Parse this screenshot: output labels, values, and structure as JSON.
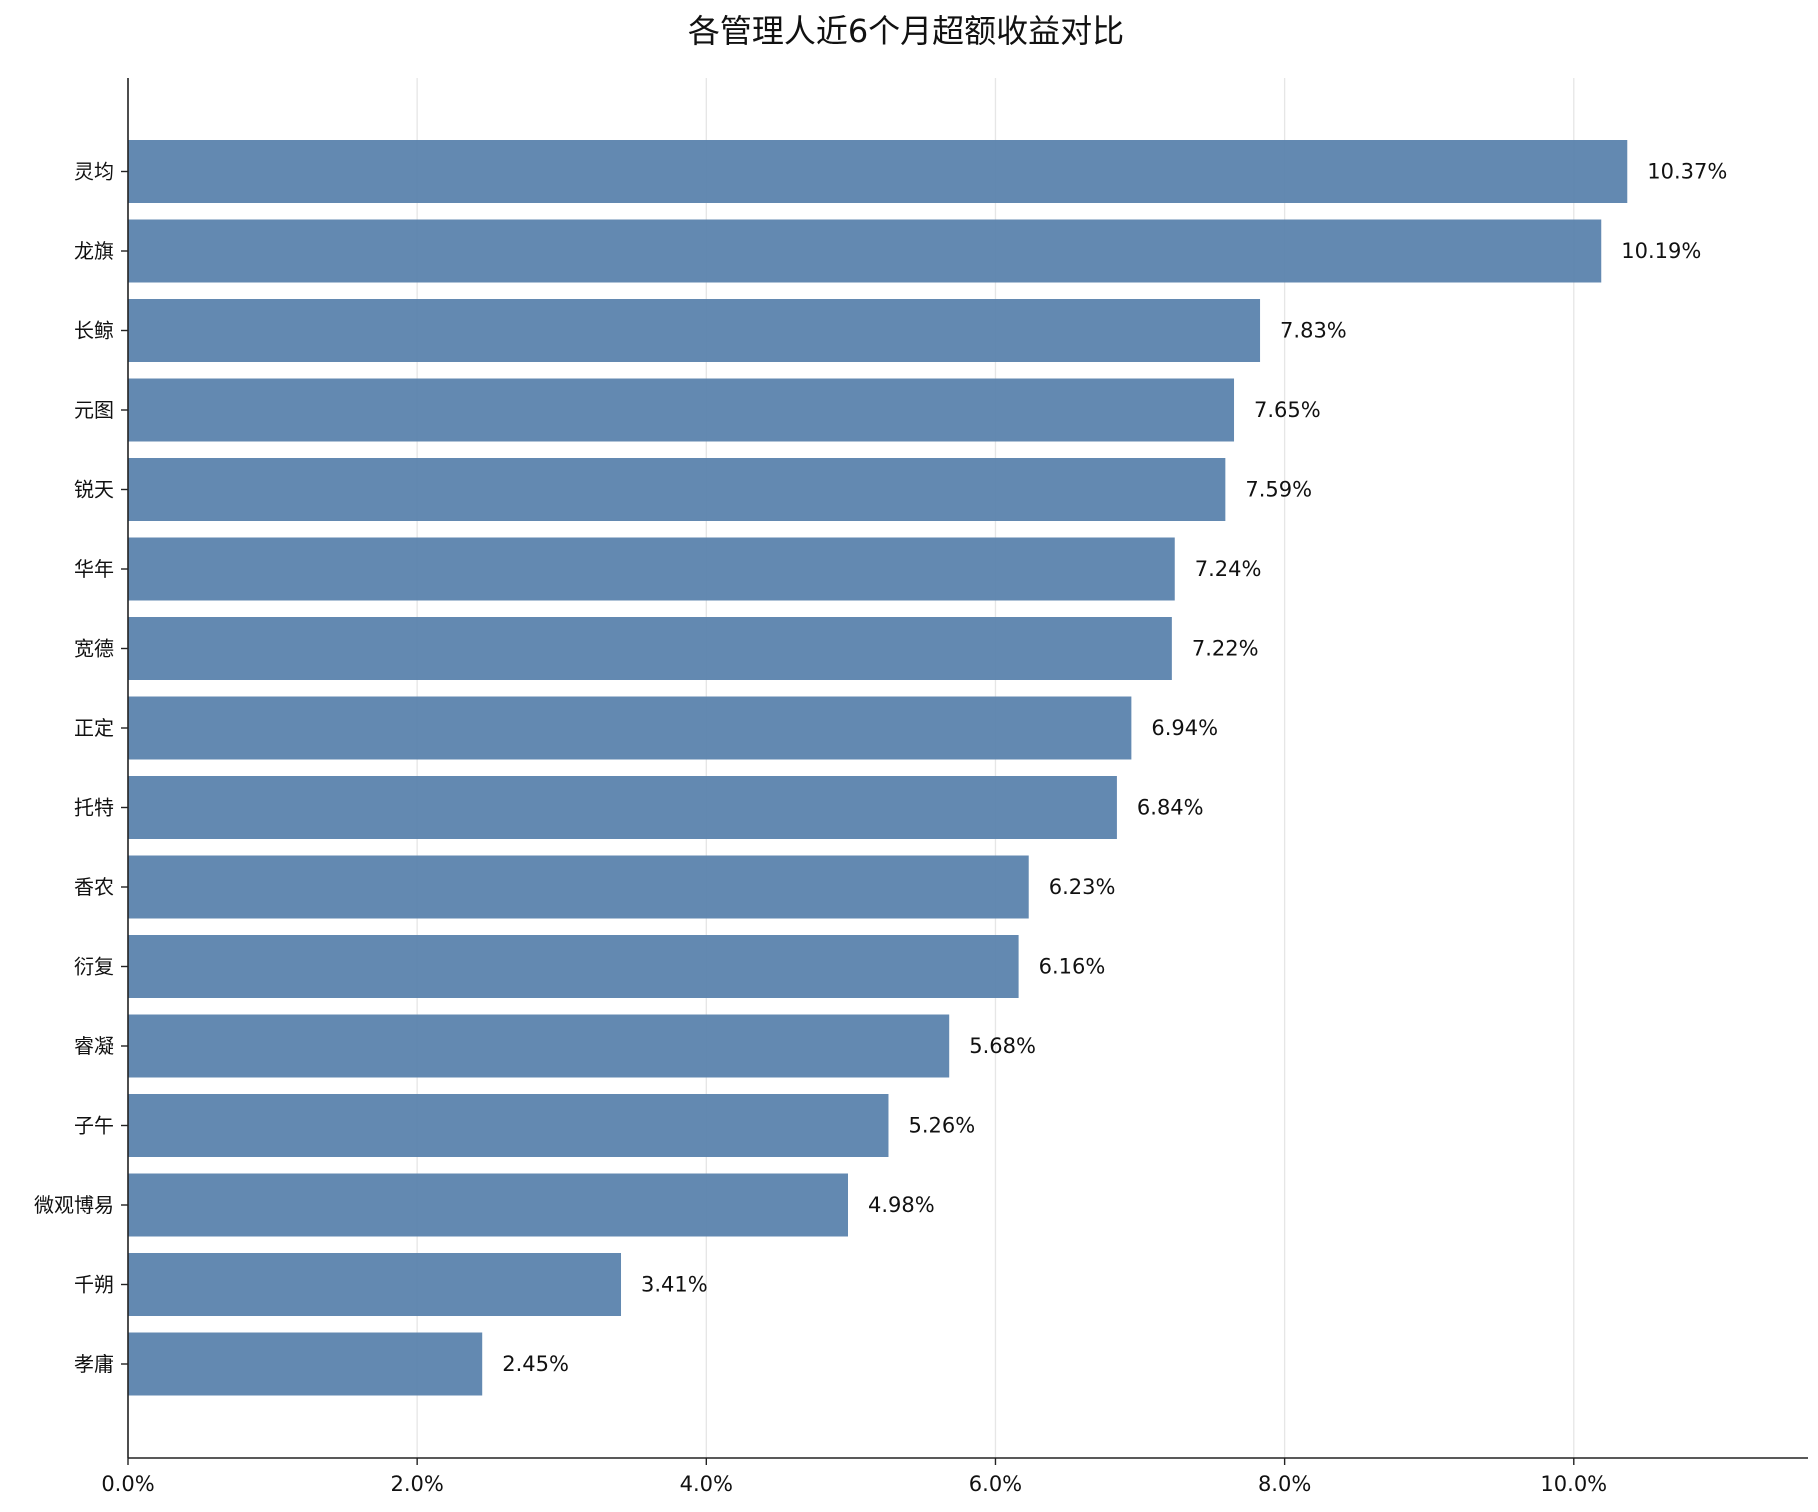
{
  "chart_data": {
    "type": "bar",
    "orientation": "horizontal",
    "title": "各管理人近6个月超额收益对比",
    "xlabel": "",
    "ylabel": "",
    "categories": [
      "灵均",
      "龙旗",
      "长鲸",
      "元图",
      "锐天",
      "华年",
      "宽德",
      "正定",
      "托特",
      "香农",
      "衍复",
      "睿凝",
      "子午",
      "微观博易",
      "千朔",
      "孝庸"
    ],
    "values": [
      10.37,
      10.19,
      7.83,
      7.65,
      7.59,
      7.24,
      7.22,
      6.94,
      6.84,
      6.23,
      6.16,
      5.68,
      5.26,
      4.98,
      3.41,
      2.45
    ],
    "value_labels": [
      "10.37%",
      "10.19%",
      "7.83%",
      "7.65%",
      "7.59%",
      "7.24%",
      "7.22%",
      "6.94%",
      "6.84%",
      "6.23%",
      "6.16%",
      "5.68%",
      "5.26%",
      "4.98%",
      "3.41%",
      "2.45%"
    ],
    "x_ticks": [
      0,
      2,
      4,
      6,
      8,
      10
    ],
    "x_tick_labels": [
      "0.0%",
      "2.0%",
      "4.0%",
      "6.0%",
      "8.0%",
      "10.0%"
    ],
    "xlim": [
      0,
      11.62
    ],
    "grid": "vertical",
    "legend": "none",
    "bar_color": "#5b83ad",
    "bar_opacity": 0.95
  }
}
